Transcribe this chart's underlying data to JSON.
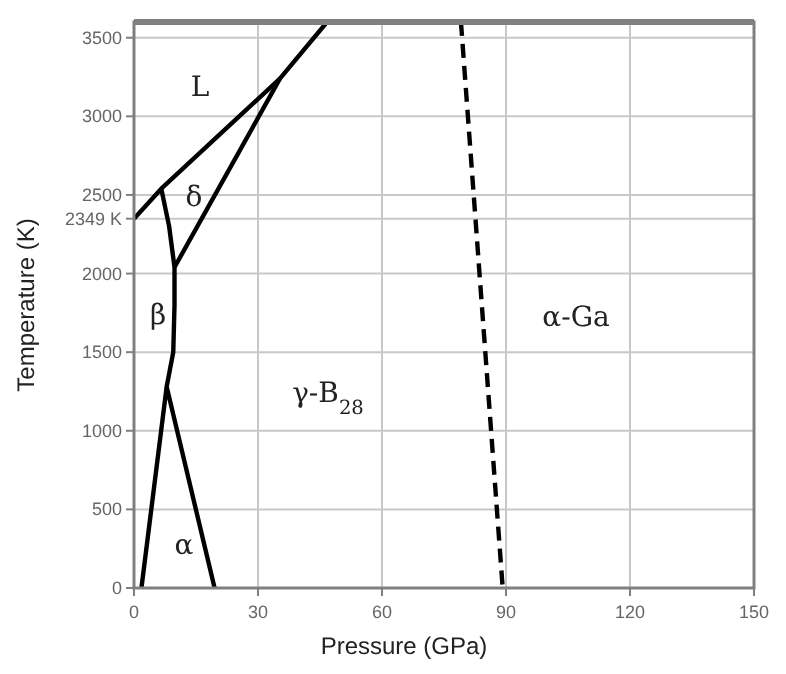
{
  "chart_data": {
    "type": "line",
    "xlabel": "Pressure (GPa)",
    "ylabel": "Temperature (K)",
    "xlim": [
      0,
      150
    ],
    "xticks": [
      0,
      30,
      60,
      90,
      120,
      150
    ],
    "ylim": [
      0,
      3600
    ],
    "yticks": [
      0,
      500,
      1000,
      1500,
      2000,
      {
        "value": 2349,
        "label": "2349 K"
      },
      2500,
      3000,
      3500
    ],
    "grid": true,
    "marker": "none",
    "line_style": "solid",
    "series": [
      {
        "color": "#000000",
        "x": [
          0,
          6.6,
          35.3,
          46.7
        ],
        "values": [
          2349,
          2540,
          3240,
          3600
        ]
      },
      {
        "color": "#000000",
        "x": [
          9.8,
          35.3
        ],
        "values": [
          2040,
          3240
        ]
      },
      {
        "color": "#000000",
        "x": [
          6.6,
          8.5,
          9.8,
          9.8,
          9.5,
          7.9
        ],
        "values": [
          2540,
          2300,
          2040,
          1800,
          1500,
          1280
        ]
      },
      {
        "color": "#000000",
        "x": [
          1.8,
          7.9,
          19.5
        ],
        "values": [
          0,
          1280,
          0
        ]
      },
      {
        "color": "#000000",
        "line_style": "dashed",
        "x": [
          79.1,
          89.2
        ],
        "values": [
          3600,
          0
        ]
      }
    ],
    "annotations": [
      "L",
      "δ",
      "β",
      "γ-B$_{28}$",
      "α",
      "α-Ga"
    ]
  }
}
